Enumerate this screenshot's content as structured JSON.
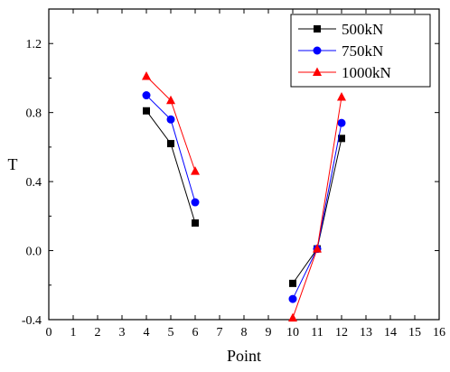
{
  "chart_data": {
    "type": "line",
    "xlabel": "Point",
    "ylabel": "T",
    "xlim": [
      0,
      16
    ],
    "ylim": [
      -0.4,
      1.4
    ],
    "xticks": [
      0,
      1,
      2,
      3,
      4,
      5,
      6,
      7,
      8,
      9,
      10,
      11,
      12,
      13,
      14,
      15,
      16
    ],
    "yticks": [
      -0.4,
      0.0,
      0.4,
      0.8,
      1.2
    ],
    "ytick_labels": [
      "-0.4",
      "0.0",
      "0.4",
      "0.8",
      "1.2"
    ],
    "grid": false,
    "legend_position": "top-right",
    "series": [
      {
        "name": "500kN",
        "color": "#000000",
        "marker": "square",
        "segments": [
          [
            [
              4,
              0.81
            ],
            [
              5,
              0.62
            ],
            [
              6,
              0.16
            ]
          ],
          [
            [
              10,
              -0.19
            ],
            [
              11,
              0.01
            ],
            [
              12,
              0.65
            ]
          ]
        ]
      },
      {
        "name": "750kN",
        "color": "#0000ff",
        "marker": "circle",
        "segments": [
          [
            [
              4,
              0.9
            ],
            [
              5,
              0.76
            ],
            [
              6,
              0.28
            ]
          ],
          [
            [
              10,
              -0.28
            ],
            [
              11,
              0.01
            ],
            [
              12,
              0.74
            ]
          ]
        ]
      },
      {
        "name": "1000kN",
        "color": "#ff0000",
        "marker": "triangle",
        "segments": [
          [
            [
              4,
              1.01
            ],
            [
              5,
              0.87
            ],
            [
              6,
              0.46
            ]
          ],
          [
            [
              10,
              -0.39
            ],
            [
              11,
              0.01
            ],
            [
              12,
              0.89
            ]
          ]
        ]
      }
    ]
  }
}
